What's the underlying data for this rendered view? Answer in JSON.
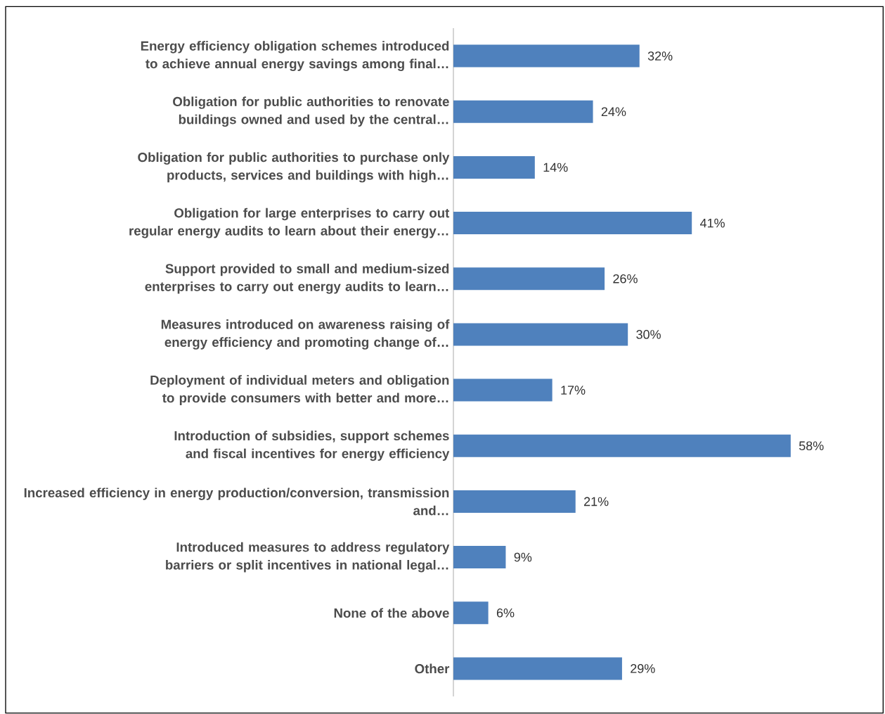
{
  "chart_data": {
    "type": "bar",
    "orientation": "horizontal",
    "color": "#4f81bd",
    "categories": [
      "Energy efficiency obligation schemes introduced to achieve annual energy savings among final…",
      "Obligation for public authorities to renovate buildings owned and used by the central…",
      "Obligation for public authorities to purchase only products, services and buildings with high…",
      "Obligation for large enterprises to carry out regular energy audits to learn about their energy…",
      "Support provided to small and medium-sized enterprises to carry out energy audits to learn…",
      "Measures introduced on awareness raising of energy efficiency and promoting change of…",
      "Deployment of individual meters and obligation to provide consumers with better and more…",
      "Introduction of subsidies, support schemes and fiscal incentives for energy efficiency",
      "Increased efficiency in energy production/conversion, transmission and…",
      "Introduced measures to address regulatory barriers or split incentives in national legal…",
      "None of the above",
      "Other"
    ],
    "values": [
      32,
      24,
      14,
      41,
      26,
      30,
      17,
      58,
      21,
      9,
      6,
      29
    ],
    "value_labels": [
      "32%",
      "24%",
      "14%",
      "41%",
      "26%",
      "30%",
      "17%",
      "58%",
      "21%",
      "9%",
      "6%",
      "29%"
    ]
  }
}
